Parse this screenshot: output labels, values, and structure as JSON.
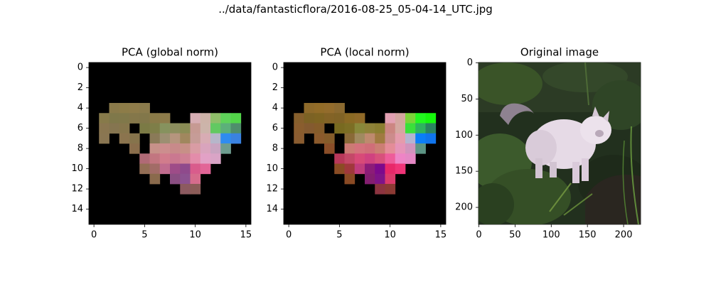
{
  "figure": {
    "suptitle": "../data/fantasticflora/2016-08-25_05-04-14_UTC.jpg"
  },
  "chart_data": [
    {
      "type": "heatmap",
      "title": "PCA (global norm)",
      "xlim": [
        -0.5,
        15.5
      ],
      "ylim": [
        15.5,
        -0.5
      ],
      "x_ticks": [
        0,
        5,
        10,
        15
      ],
      "y_ticks": [
        0,
        2,
        4,
        6,
        8,
        10,
        12,
        14
      ],
      "grid": false,
      "background": "#000000",
      "cells": [
        [
          4,
          2,
          "#8a7a4a"
        ],
        [
          4,
          3,
          "#8d7c48"
        ],
        [
          4,
          4,
          "#8f7c4a"
        ],
        [
          4,
          5,
          "#8b7b4c"
        ],
        [
          5,
          1,
          "#877a4a"
        ],
        [
          5,
          2,
          "#7f784a"
        ],
        [
          5,
          3,
          "#80784a"
        ],
        [
          5,
          4,
          "#84774a"
        ],
        [
          5,
          5,
          "#82774a"
        ],
        [
          5,
          6,
          "#8a7a48"
        ],
        [
          5,
          7,
          "#8d7b4a"
        ],
        [
          5,
          10,
          "#d7aeb4"
        ],
        [
          5,
          11,
          "#cdb3a8"
        ],
        [
          5,
          12,
          "#8fbf6a"
        ],
        [
          5,
          13,
          "#5fd35a"
        ],
        [
          5,
          14,
          "#53d64a"
        ],
        [
          6,
          1,
          "#8a7650"
        ],
        [
          6,
          2,
          "#857550"
        ],
        [
          6,
          3,
          "#86764c"
        ],
        [
          6,
          5,
          "#7b7a45"
        ],
        [
          6,
          6,
          "#7e7e48"
        ],
        [
          6,
          7,
          "#86925e"
        ],
        [
          6,
          8,
          "#8c8e5e"
        ],
        [
          6,
          9,
          "#8a8c55"
        ],
        [
          6,
          10,
          "#c69a93"
        ],
        [
          6,
          11,
          "#ccb4aa"
        ],
        [
          6,
          12,
          "#62c962"
        ],
        [
          6,
          13,
          "#5cb07a"
        ],
        [
          6,
          14,
          "#4f8e6c"
        ],
        [
          7,
          1,
          "#8a7652"
        ],
        [
          7,
          3,
          "#8b744e"
        ],
        [
          7,
          4,
          "#86744c"
        ],
        [
          7,
          6,
          "#8a7a58"
        ],
        [
          7,
          7,
          "#9c8f72"
        ],
        [
          7,
          8,
          "#b5957e"
        ],
        [
          7,
          9,
          "#a0875e"
        ],
        [
          7,
          10,
          "#c69c97"
        ],
        [
          7,
          11,
          "#d8acb4"
        ],
        [
          7,
          12,
          "#b6b6ca"
        ],
        [
          7,
          13,
          "#2f8cf0"
        ],
        [
          7,
          14,
          "#3a82e0"
        ],
        [
          8,
          4,
          "#8a6e4c"
        ],
        [
          8,
          6,
          "#c79189"
        ],
        [
          8,
          7,
          "#cc8e8e"
        ],
        [
          8,
          8,
          "#c88a8a"
        ],
        [
          8,
          9,
          "#c79087"
        ],
        [
          8,
          10,
          "#d99ca4"
        ],
        [
          8,
          11,
          "#d9a4bd"
        ],
        [
          8,
          12,
          "#c8a4c0"
        ],
        [
          8,
          13,
          "#6e9c8f"
        ],
        [
          9,
          5,
          "#b06a76"
        ],
        [
          9,
          6,
          "#c27680"
        ],
        [
          9,
          7,
          "#d17c8c"
        ],
        [
          9,
          8,
          "#ca7890"
        ],
        [
          9,
          9,
          "#cf8094"
        ],
        [
          9,
          10,
          "#e38caa"
        ],
        [
          9,
          11,
          "#e2a1c6"
        ],
        [
          9,
          12,
          "#d9a4c6"
        ],
        [
          10,
          5,
          "#936e55"
        ],
        [
          10,
          6,
          "#a26c67"
        ],
        [
          10,
          7,
          "#c06c8e"
        ],
        [
          10,
          8,
          "#9e4c88"
        ],
        [
          10,
          9,
          "#8f4a8c"
        ],
        [
          10,
          10,
          "#d95c8c"
        ],
        [
          10,
          11,
          "#e26597"
        ],
        [
          11,
          6,
          "#8a6a4c"
        ],
        [
          11,
          8,
          "#8a4e82"
        ],
        [
          11,
          9,
          "#8c5290"
        ],
        [
          11,
          10,
          "#d66c8c"
        ],
        [
          12,
          9,
          "#8c5a60"
        ],
        [
          12,
          10,
          "#8c5c58"
        ]
      ]
    },
    {
      "type": "heatmap",
      "title": "PCA (local norm)",
      "xlim": [
        -0.5,
        15.5
      ],
      "ylim": [
        15.5,
        -0.5
      ],
      "x_ticks": [
        0,
        5,
        10,
        15
      ],
      "y_ticks": [
        0,
        2,
        4,
        6,
        8,
        10,
        12,
        14
      ],
      "grid": false,
      "background": "#000000",
      "cells": [
        [
          4,
          2,
          "#8e6a2a"
        ],
        [
          4,
          3,
          "#926c28"
        ],
        [
          4,
          4,
          "#936c2c"
        ],
        [
          4,
          5,
          "#8b6a30"
        ],
        [
          5,
          1,
          "#865f2c"
        ],
        [
          5,
          2,
          "#7c6224"
        ],
        [
          5,
          3,
          "#7e6422"
        ],
        [
          5,
          4,
          "#836326"
        ],
        [
          5,
          5,
          "#806326"
        ],
        [
          5,
          6,
          "#8b6a24"
        ],
        [
          5,
          7,
          "#906a28"
        ],
        [
          5,
          10,
          "#e2a0b2"
        ],
        [
          5,
          11,
          "#d4a6a0"
        ],
        [
          5,
          12,
          "#7cd43a"
        ],
        [
          5,
          13,
          "#22f820"
        ],
        [
          5,
          14,
          "#16f80c"
        ],
        [
          6,
          1,
          "#8a5d2e"
        ],
        [
          6,
          2,
          "#845a30"
        ],
        [
          6,
          3,
          "#855c2a"
        ],
        [
          6,
          5,
          "#786a20"
        ],
        [
          6,
          6,
          "#7c6e24"
        ],
        [
          6,
          7,
          "#88883a"
        ],
        [
          6,
          8,
          "#8e8238"
        ],
        [
          6,
          9,
          "#8a7e30"
        ],
        [
          6,
          10,
          "#cc8682"
        ],
        [
          6,
          11,
          "#d4a8a0"
        ],
        [
          6,
          12,
          "#3ae03a"
        ],
        [
          6,
          13,
          "#2eb45e"
        ],
        [
          6,
          14,
          "#2a8460"
        ],
        [
          7,
          1,
          "#8a5c30"
        ],
        [
          7,
          3,
          "#8b5a2c"
        ],
        [
          7,
          4,
          "#855c2a"
        ],
        [
          7,
          6,
          "#8a6a38"
        ],
        [
          7,
          7,
          "#a08a60"
        ],
        [
          7,
          8,
          "#be8a6e"
        ],
        [
          7,
          9,
          "#a07a40"
        ],
        [
          7,
          10,
          "#cc8c8c"
        ],
        [
          7,
          11,
          "#e49cac"
        ],
        [
          7,
          12,
          "#b4b4d0"
        ],
        [
          7,
          13,
          "#0a7ef8"
        ],
        [
          7,
          14,
          "#1074ec"
        ],
        [
          8,
          4,
          "#8a4e28"
        ],
        [
          8,
          6,
          "#cc7a74"
        ],
        [
          8,
          7,
          "#d4727c"
        ],
        [
          8,
          8,
          "#d06e78"
        ],
        [
          8,
          9,
          "#cc7e74"
        ],
        [
          8,
          10,
          "#e48c98"
        ],
        [
          8,
          11,
          "#e694b8"
        ],
        [
          8,
          12,
          "#d094bc"
        ],
        [
          8,
          13,
          "#5c9484"
        ],
        [
          9,
          5,
          "#b8385a"
        ],
        [
          9,
          6,
          "#c44868"
        ],
        [
          9,
          7,
          "#d84a78"
        ],
        [
          9,
          8,
          "#d04280"
        ],
        [
          9,
          9,
          "#d8507c"
        ],
        [
          9,
          10,
          "#ee5c9a"
        ],
        [
          9,
          11,
          "#ee84c6"
        ],
        [
          9,
          12,
          "#e488c4"
        ],
        [
          10,
          5,
          "#8a4c24"
        ],
        [
          10,
          6,
          "#a0383c"
        ],
        [
          10,
          7,
          "#c03c7c"
        ],
        [
          10,
          8,
          "#8c1c78"
        ],
        [
          10,
          9,
          "#7c0a8c"
        ],
        [
          10,
          10,
          "#e8286a"
        ],
        [
          10,
          11,
          "#f03478"
        ],
        [
          11,
          6,
          "#8a4a24"
        ],
        [
          11,
          8,
          "#841e70"
        ],
        [
          11,
          9,
          "#7e1488"
        ],
        [
          11,
          10,
          "#dc3a6c"
        ],
        [
          12,
          9,
          "#8c3440"
        ],
        [
          12,
          10,
          "#8c3a34"
        ]
      ]
    },
    {
      "type": "image",
      "title": "Original image",
      "xlim": [
        -0.5,
        223.5
      ],
      "ylim": [
        223.5,
        -0.5
      ],
      "x_ticks": [
        0,
        50,
        100,
        150,
        200
      ],
      "y_ticks": [
        0,
        50,
        100,
        150,
        200
      ]
    }
  ],
  "colors": {
    "axis": "#000000",
    "map_background": "#000000",
    "foliage_dark": "#1f2a1c",
    "foliage_green": "#3e5a2a",
    "cat_white": "#e8dce8",
    "cat_grey": "#a89aa4"
  }
}
